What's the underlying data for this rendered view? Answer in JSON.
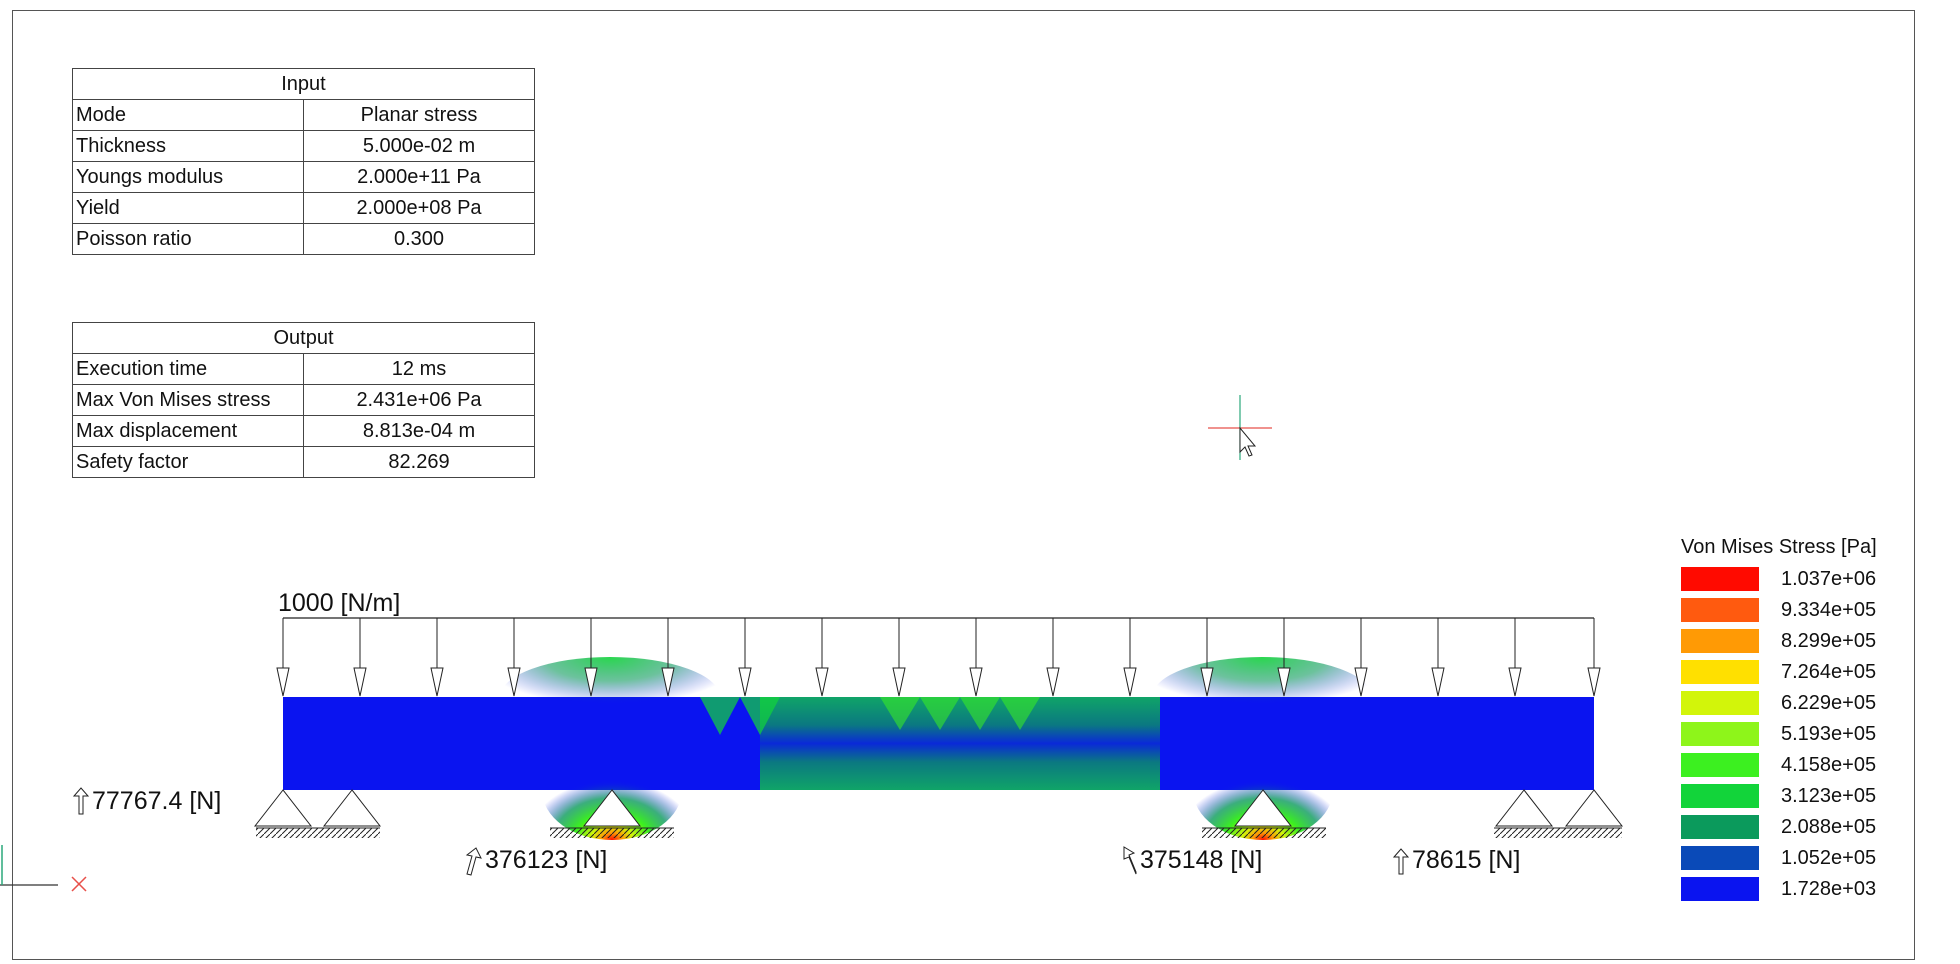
{
  "input_table": {
    "title": "Input",
    "rows": [
      {
        "label": "Mode",
        "value": "Planar stress"
      },
      {
        "label": "Thickness",
        "value": "5.000e-02 m"
      },
      {
        "label": "Youngs modulus",
        "value": "2.000e+11 Pa"
      },
      {
        "label": "Yield",
        "value": "2.000e+08 Pa"
      },
      {
        "label": "Poisson ratio",
        "value": "0.300"
      }
    ]
  },
  "output_table": {
    "title": "Output",
    "rows": [
      {
        "label": "Execution time",
        "value": "12 ms"
      },
      {
        "label": "Max Von Mises stress",
        "value": "2.431e+06 Pa"
      },
      {
        "label": "Max displacement",
        "value": "8.813e-04 m"
      },
      {
        "label": "Safety factor",
        "value": "82.269"
      }
    ]
  },
  "load": {
    "label": "1000 [N/m]"
  },
  "reactions": [
    {
      "label": "77767.4 [N]"
    },
    {
      "label": "376123 [N]"
    },
    {
      "label": "375148 [N]"
    },
    {
      "label": "78615 [N]"
    }
  ],
  "legend": {
    "title": "Von Mises Stress [Pa]",
    "entries": [
      {
        "value": "1.037e+06",
        "color": "#ff0a00"
      },
      {
        "value": "9.334e+05",
        "color": "#ff5a0f"
      },
      {
        "value": "8.299e+05",
        "color": "#ff9a05"
      },
      {
        "value": "7.264e+05",
        "color": "#ffe000"
      },
      {
        "value": "6.229e+05",
        "color": "#d2f50a"
      },
      {
        "value": "5.193e+05",
        "color": "#8ef51a"
      },
      {
        "value": "4.158e+05",
        "color": "#3cf020"
      },
      {
        "value": "3.123e+05",
        "color": "#12d43a"
      },
      {
        "value": "2.088e+05",
        "color": "#0b9a5c"
      },
      {
        "value": "1.052e+05",
        "color": "#0a4ab8"
      },
      {
        "value": "1.728e+03",
        "color": "#0a14f0"
      }
    ]
  },
  "colors": {
    "beam_base": "#0a14f0",
    "stress_mid": "#0a4ab8",
    "stress_green": "#12d43a",
    "stress_peak": "#ff0a00",
    "cursor_h": "#e8504a",
    "cursor_v": "#2aa87a"
  }
}
